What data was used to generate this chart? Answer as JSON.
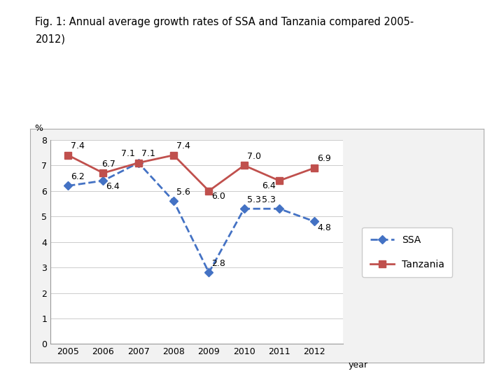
{
  "years": [
    2005,
    2006,
    2007,
    2008,
    2009,
    2010,
    2011,
    2012
  ],
  "ssa": [
    6.2,
    6.4,
    7.1,
    5.6,
    2.8,
    5.3,
    5.3,
    4.8
  ],
  "tanzania": [
    7.4,
    6.7,
    7.1,
    7.4,
    6.0,
    7.0,
    6.4,
    6.9
  ],
  "ssa_labels": [
    "6.2",
    "6.4",
    "7.1",
    "5.6",
    "2.8",
    "5.3",
    "5.3",
    "4.8"
  ],
  "tanzania_labels": [
    "7.4",
    "6.7",
    "7.1",
    "7.4",
    "6.0",
    "7.0",
    "6.4",
    "6.9"
  ],
  "ssa_color": "#4472C4",
  "tanzania_color": "#C0504D",
  "title_line1": "Fig. 1: Annual average growth rates of SSA and Tanzania compared 2005-",
  "title_line2": "2012)",
  "ylabel": "%",
  "xlabel": "year",
  "ylim": [
    0,
    8
  ],
  "yticks": [
    0,
    1,
    2,
    3,
    4,
    5,
    6,
    7,
    8
  ],
  "legend_ssa": "SSA",
  "legend_tanzania": "Tanzania",
  "bg_color": "#FFFFFF",
  "plot_bg_color": "#FFFFFF",
  "box_bg_color": "#F2F2F2"
}
